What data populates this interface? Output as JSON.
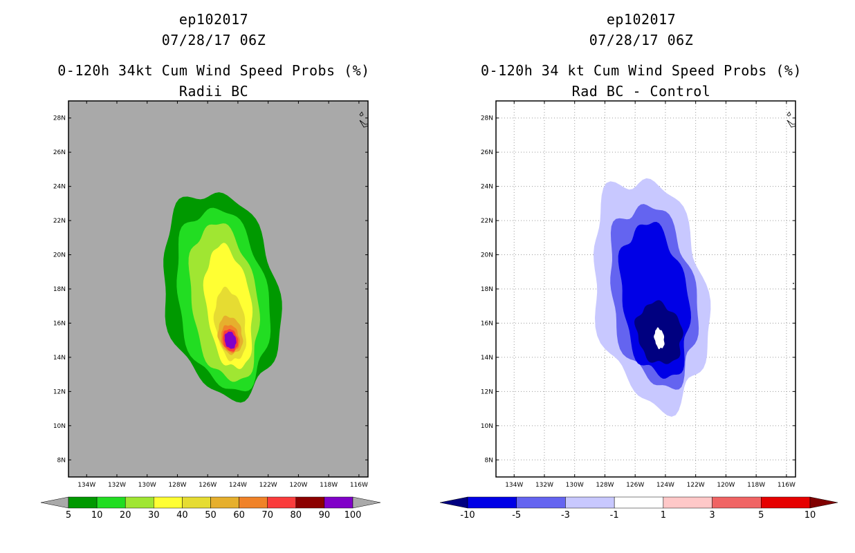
{
  "chart_data": [
    {
      "type": "contour",
      "storm_id": "ep102017",
      "datetime": "07/28/17 06Z",
      "title": "0-120h 34kt Cum Wind Speed Probs (%)",
      "subtitle": "Radii BC",
      "background_color": "#a9a9a9",
      "grid": false,
      "x_ticks": [
        "134W",
        "132W",
        "130W",
        "128W",
        "126W",
        "124W",
        "122W",
        "120W",
        "118W",
        "116W"
      ],
      "y_ticks": [
        "28N",
        "26N",
        "24N",
        "22N",
        "20N",
        "18N",
        "16N",
        "14N",
        "12N",
        "10N",
        "8N"
      ],
      "x_values": [
        -134,
        -132,
        -130,
        -128,
        -126,
        -124,
        -122,
        -120,
        -118,
        -116
      ],
      "y_values": [
        28,
        26,
        24,
        22,
        20,
        18,
        16,
        14,
        12,
        10,
        8
      ],
      "xlim": [
        -135.2,
        -115.4
      ],
      "ylim": [
        7.0,
        29.0
      ],
      "colorbar": {
        "labels": [
          "5",
          "10",
          "20",
          "30",
          "40",
          "50",
          "60",
          "70",
          "80",
          "90",
          "100"
        ],
        "colors": [
          "#009900",
          "#22dd22",
          "#a0e632",
          "#ffff33",
          "#e6dc32",
          "#e6af2d",
          "#f08228",
          "#fa3c3c",
          "#8c0000",
          "#8000c8"
        ],
        "arrow_color": "#a9a9a9"
      },
      "contours": [
        {
          "level": 5,
          "color": "#009900",
          "center": [
            -125.1,
            17.7
          ],
          "rx": 3.8,
          "ry": 6.0
        },
        {
          "level": 10,
          "color": "#22dd22",
          "center": [
            -125.0,
            17.4
          ],
          "rx": 3.0,
          "ry": 5.3
        },
        {
          "level": 20,
          "color": "#a0e632",
          "center": [
            -124.9,
            17.2
          ],
          "rx": 2.2,
          "ry": 4.6
        },
        {
          "level": 30,
          "color": "#ffff33",
          "center": [
            -124.6,
            16.9
          ],
          "rx": 1.5,
          "ry": 3.6
        },
        {
          "level": 40,
          "color": "#e6dc32",
          "center": [
            -124.5,
            15.9
          ],
          "rx": 1.0,
          "ry": 2.1
        },
        {
          "level": 50,
          "color": "#e6af2d",
          "center": [
            -124.5,
            15.3
          ],
          "rx": 0.8,
          "ry": 1.1
        },
        {
          "level": 60,
          "color": "#f08228",
          "center": [
            -124.5,
            15.1
          ],
          "rx": 0.6,
          "ry": 0.8
        },
        {
          "level": 70,
          "color": "#fa3c3c",
          "center": [
            -124.5,
            15.0
          ],
          "rx": 0.5,
          "ry": 0.65
        },
        {
          "level": 90,
          "color": "#8000c8",
          "center": [
            -124.5,
            15.0
          ],
          "rx": 0.38,
          "ry": 0.5
        }
      ]
    },
    {
      "type": "contour",
      "storm_id": "ep102017",
      "datetime": "07/28/17 06Z",
      "title": "0-120h 34 kt Cum Wind Speed Probs (%)",
      "subtitle": "Rad BC - Control",
      "background_color": "#ffffff",
      "grid": true,
      "x_ticks": [
        "134W",
        "132W",
        "130W",
        "128W",
        "126W",
        "124W",
        "122W",
        "120W",
        "118W",
        "116W"
      ],
      "y_ticks": [
        "28N",
        "26N",
        "24N",
        "22N",
        "20N",
        "18N",
        "16N",
        "14N",
        "12N",
        "10N",
        "8N"
      ],
      "x_values": [
        -134,
        -132,
        -130,
        -128,
        -126,
        -124,
        -122,
        -120,
        -118,
        -116
      ],
      "y_values": [
        28,
        26,
        24,
        22,
        20,
        18,
        16,
        14,
        12,
        10,
        8
      ],
      "xlim": [
        -135.2,
        -115.4
      ],
      "ylim": [
        7.0,
        29.0
      ],
      "colorbar": {
        "labels": [
          "-10",
          "-5",
          "-3",
          "-1",
          "1",
          "3",
          "5",
          "10"
        ],
        "colors": [
          "#0000e6",
          "#6464f0",
          "#c8c8ff",
          "#ffffff",
          "#ffc8c8",
          "#f06464",
          "#e60000"
        ],
        "left_arrow_color": "#000080",
        "right_arrow_color": "#800000"
      },
      "contours": [
        {
          "level": -1,
          "color": "#c8c8ff",
          "center": [
            -125.0,
            17.8
          ],
          "rx": 3.7,
          "ry": 6.7
        },
        {
          "level": -3,
          "color": "#6464f0",
          "center": [
            -124.8,
            17.6
          ],
          "rx": 2.8,
          "ry": 5.3
        },
        {
          "level": -5,
          "color": "#0000e6",
          "center": [
            -124.7,
            17.3
          ],
          "rx": 2.2,
          "ry": 4.5
        },
        {
          "level": -10,
          "color": "#000080",
          "center": [
            -124.4,
            15.4
          ],
          "rx": 1.5,
          "ry": 1.8
        },
        {
          "level": 1,
          "color": "#ffffff",
          "center": [
            -124.4,
            15.1
          ],
          "rx": 0.32,
          "ry": 0.6
        }
      ]
    }
  ]
}
